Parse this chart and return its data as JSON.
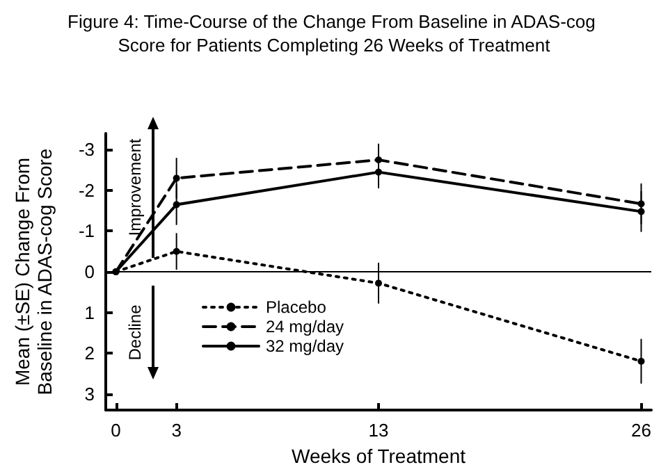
{
  "chart_data": {
    "type": "line",
    "title": "Figure 4: Time-Course of the Change From Baseline in ADAS-cog Score for Patients Completing 26 Weeks of Treatment",
    "xlabel": "Weeks of Treatment",
    "ylabel": "Mean (±SE) Change From Baseline in ADAS-cog Score",
    "x": [
      0,
      3,
      13,
      26
    ],
    "series": [
      {
        "name": "Placebo",
        "color": "#000000",
        "line_style": "dotted",
        "values": [
          0,
          -0.5,
          0.28,
          2.2
        ],
        "errors": [
          null,
          0.45,
          0.5,
          0.55
        ]
      },
      {
        "name": "24 mg/day",
        "color": "#000000",
        "line_style": "dashed",
        "values": [
          0,
          -2.3,
          -2.75,
          -1.67
        ],
        "errors": [
          null,
          0.5,
          0.4,
          0.5
        ]
      },
      {
        "name": "32 mg/day",
        "color": "#000000",
        "line_style": "solid",
        "values": [
          0,
          -1.65,
          -2.45,
          -1.48
        ],
        "errors": [
          null,
          0.5,
          0.4,
          0.5
        ]
      }
    ],
    "xlim": [
      -0.5,
      26.5
    ],
    "xticks": [
      0,
      3,
      13,
      26
    ],
    "ylim": [
      3.4,
      -3.4
    ],
    "yticks": [
      -3,
      -2,
      -1,
      0,
      1,
      2,
      3
    ],
    "ref_lines": [
      {
        "axis": "y",
        "value": 0,
        "label": null
      }
    ],
    "annotations": [
      "Improvement",
      "Decline"
    ],
    "marker": "circle",
    "grid": false,
    "legend": "bottom left"
  }
}
